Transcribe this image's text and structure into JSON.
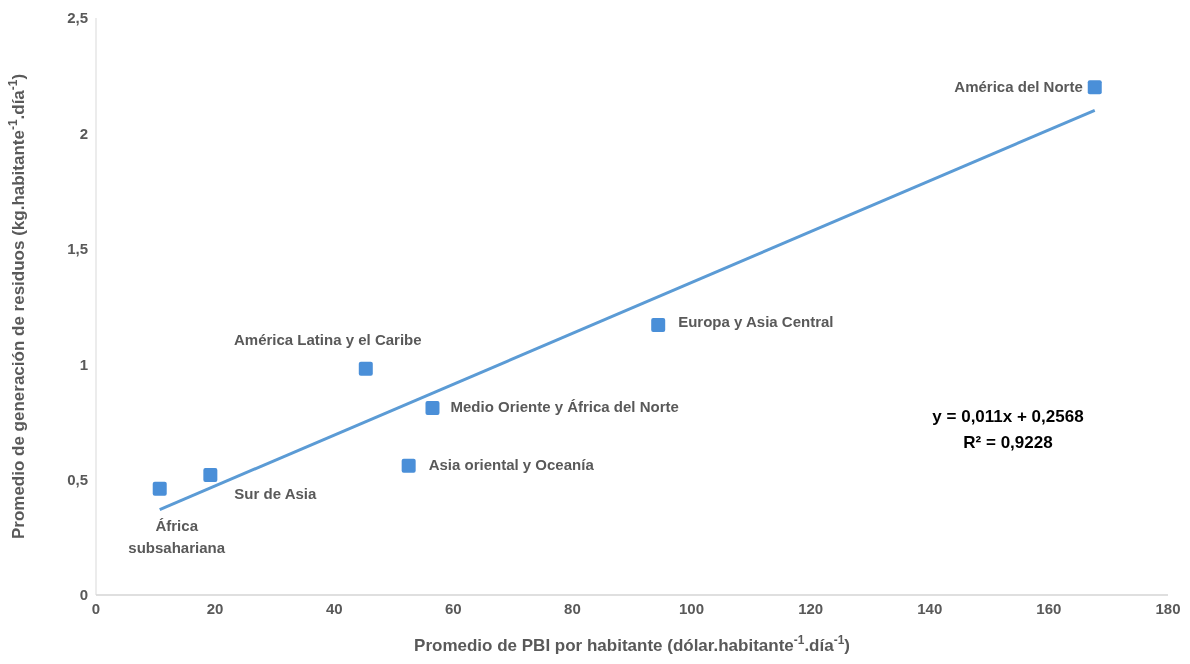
{
  "chart_data": {
    "type": "scatter",
    "xlabel": "Promedio de PBI por habitante (dólar.habitante$^{-1}$.día$^{-1}$)",
    "ylabel": "Promedio de generación de residuos (kg.habitante$^{-1}$.día$^{-1}$)",
    "xlim": [
      0,
      180
    ],
    "xticks": [
      0,
      20,
      40,
      60,
      80,
      100,
      120,
      140,
      160,
      180
    ],
    "ylim": [
      0,
      2.5
    ],
    "yticks": [
      0,
      {
        "value": 0.5,
        "label": "0,5"
      },
      1,
      {
        "value": 1.5,
        "label": "1,5"
      },
      2,
      {
        "value": 2.5,
        "label": "2,5"
      }
    ],
    "marker": "square",
    "series": [
      {
        "color": "#4a8fd8",
        "x": [
          167.7,
          94.4,
          45.3,
          56.5,
          52.5,
          19.2,
          10.7
        ],
        "values": [
          2.2,
          1.17,
          0.98,
          0.81,
          0.56,
          0.52,
          0.46
        ]
      },
      {
        "type": "line",
        "color": "#5b9bd5",
        "line_style": "solid",
        "marker": "none",
        "x": [
          10.7,
          167.7
        ],
        "values": [
          0.37,
          2.1
        ]
      }
    ],
    "annotations": [
      {
        "text": "América del Norte",
        "x": 167.7,
        "y": 2.2
      },
      {
        "text": "Europa y Asia Central",
        "x": 94.4,
        "y": 1.17
      },
      {
        "text": "América Latina y el Caribe",
        "x": 45.3,
        "y": 0.98
      },
      {
        "text": "Medio Oriente y África del Norte",
        "x": 56.5,
        "y": 0.81
      },
      {
        "text": "Asia oriental y Oceanía",
        "x": 52.5,
        "y": 0.56
      },
      {
        "text": "Sur de Asia",
        "x": 19.2,
        "y": 0.52
      },
      {
        "text": "África subsahariana",
        "x": 10.7,
        "y": 0.46
      },
      "y = 0,011x + 0,2568",
      "R² = 0,9228"
    ]
  }
}
